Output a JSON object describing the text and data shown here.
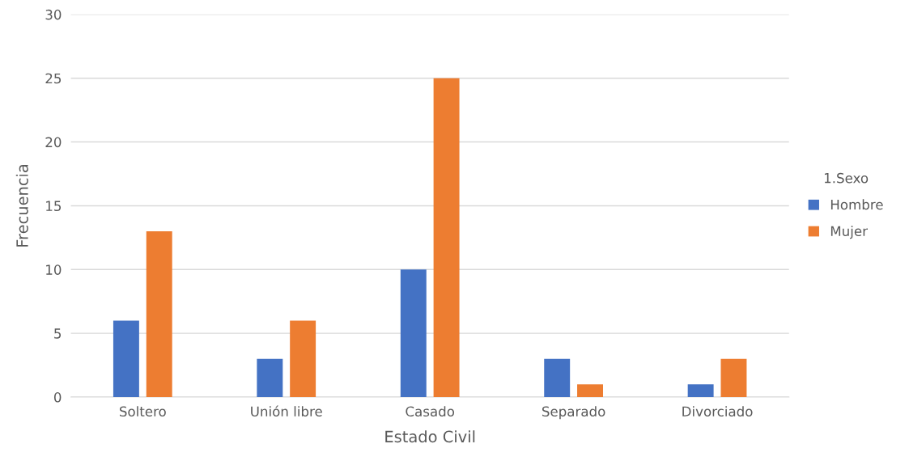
{
  "chart_data": {
    "type": "bar",
    "xlabel": "Estado Civil",
    "ylabel": "Frecuencia",
    "legend_title": "1.Sexo",
    "categories": [
      "Soltero",
      "Unión libre",
      "Casado",
      "Separado",
      "Divorciado"
    ],
    "series": [
      {
        "name": "Hombre",
        "color": "#4472c4",
        "values": [
          6,
          3,
          10,
          3,
          1
        ]
      },
      {
        "name": "Mujer",
        "color": "#ed7d31",
        "values": [
          13,
          6,
          25,
          1,
          3
        ]
      }
    ],
    "ylim": [
      0,
      30
    ],
    "yticks": [
      0,
      5,
      10,
      15,
      20,
      25,
      30
    ],
    "grid": "y",
    "legend": "right"
  }
}
